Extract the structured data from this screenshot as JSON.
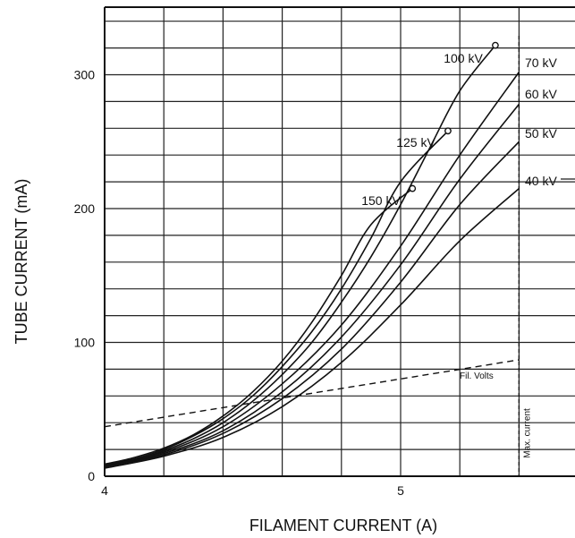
{
  "chart_data": {
    "type": "line",
    "title": "",
    "xlabel": "FILAMENT CURRENT (A)",
    "ylabel": "TUBE CURRENT (mA)",
    "xlim": [
      4.0,
      5.6
    ],
    "ylim": [
      0,
      350
    ],
    "x_ticks": [
      "4",
      "5"
    ],
    "y_ticks": [
      "0",
      "100",
      "200",
      "300"
    ],
    "grid": true,
    "max_current": {
      "x": 5.4,
      "label": "Max. current"
    },
    "series": [
      {
        "name": "100 kV",
        "end_marker": true,
        "points": [
          [
            4.0,
            8
          ],
          [
            4.1,
            12
          ],
          [
            4.2,
            19
          ],
          [
            4.3,
            28
          ],
          [
            4.4,
            40
          ],
          [
            4.5,
            56
          ],
          [
            4.6,
            76
          ],
          [
            4.7,
            100
          ],
          [
            4.8,
            130
          ],
          [
            4.9,
            164
          ],
          [
            5.0,
            203
          ],
          [
            5.1,
            246
          ],
          [
            5.2,
            288
          ],
          [
            5.32,
            322
          ]
        ]
      },
      {
        "name": "125 kV",
        "end_marker": true,
        "points": [
          [
            4.0,
            9
          ],
          [
            4.1,
            13
          ],
          [
            4.2,
            20
          ],
          [
            4.3,
            30
          ],
          [
            4.4,
            43
          ],
          [
            4.5,
            60
          ],
          [
            4.6,
            82
          ],
          [
            4.7,
            108
          ],
          [
            4.8,
            140
          ],
          [
            4.9,
            178
          ],
          [
            5.0,
            220
          ],
          [
            5.16,
            258
          ]
        ]
      },
      {
        "name": "150 kV",
        "end_marker": true,
        "points": [
          [
            4.0,
            9
          ],
          [
            4.1,
            14
          ],
          [
            4.2,
            21
          ],
          [
            4.3,
            31
          ],
          [
            4.4,
            45
          ],
          [
            4.5,
            63
          ],
          [
            4.6,
            86
          ],
          [
            4.7,
            115
          ],
          [
            4.8,
            150
          ],
          [
            4.9,
            188
          ],
          [
            5.04,
            215
          ]
        ]
      },
      {
        "name": "70 kV",
        "end_marker": false,
        "points": [
          [
            4.0,
            8
          ],
          [
            4.2,
            18
          ],
          [
            4.4,
            37
          ],
          [
            4.6,
            69
          ],
          [
            4.8,
            113
          ],
          [
            5.0,
            172
          ],
          [
            5.2,
            240
          ],
          [
            5.4,
            302
          ]
        ]
      },
      {
        "name": "60 kV",
        "end_marker": false,
        "points": [
          [
            4.0,
            7
          ],
          [
            4.2,
            17
          ],
          [
            4.4,
            34
          ],
          [
            4.6,
            63
          ],
          [
            4.8,
            104
          ],
          [
            5.0,
            158
          ],
          [
            5.2,
            222
          ],
          [
            5.4,
            278
          ]
        ]
      },
      {
        "name": "50 kV",
        "end_marker": false,
        "points": [
          [
            4.0,
            7
          ],
          [
            4.2,
            16
          ],
          [
            4.4,
            32
          ],
          [
            4.6,
            58
          ],
          [
            4.8,
            95
          ],
          [
            5.0,
            145
          ],
          [
            5.2,
            203
          ],
          [
            5.4,
            250
          ]
        ]
      },
      {
        "name": "40 kV",
        "end_marker": false,
        "points": [
          [
            4.0,
            6
          ],
          [
            4.2,
            15
          ],
          [
            4.4,
            29
          ],
          [
            4.6,
            52
          ],
          [
            4.8,
            85
          ],
          [
            5.0,
            128
          ],
          [
            5.2,
            176
          ],
          [
            5.4,
            215
          ]
        ]
      }
    ],
    "fil_volts": {
      "name": "Fil. Volts",
      "points": [
        [
          4.0,
          37
        ],
        [
          5.4,
          87
        ]
      ]
    }
  }
}
